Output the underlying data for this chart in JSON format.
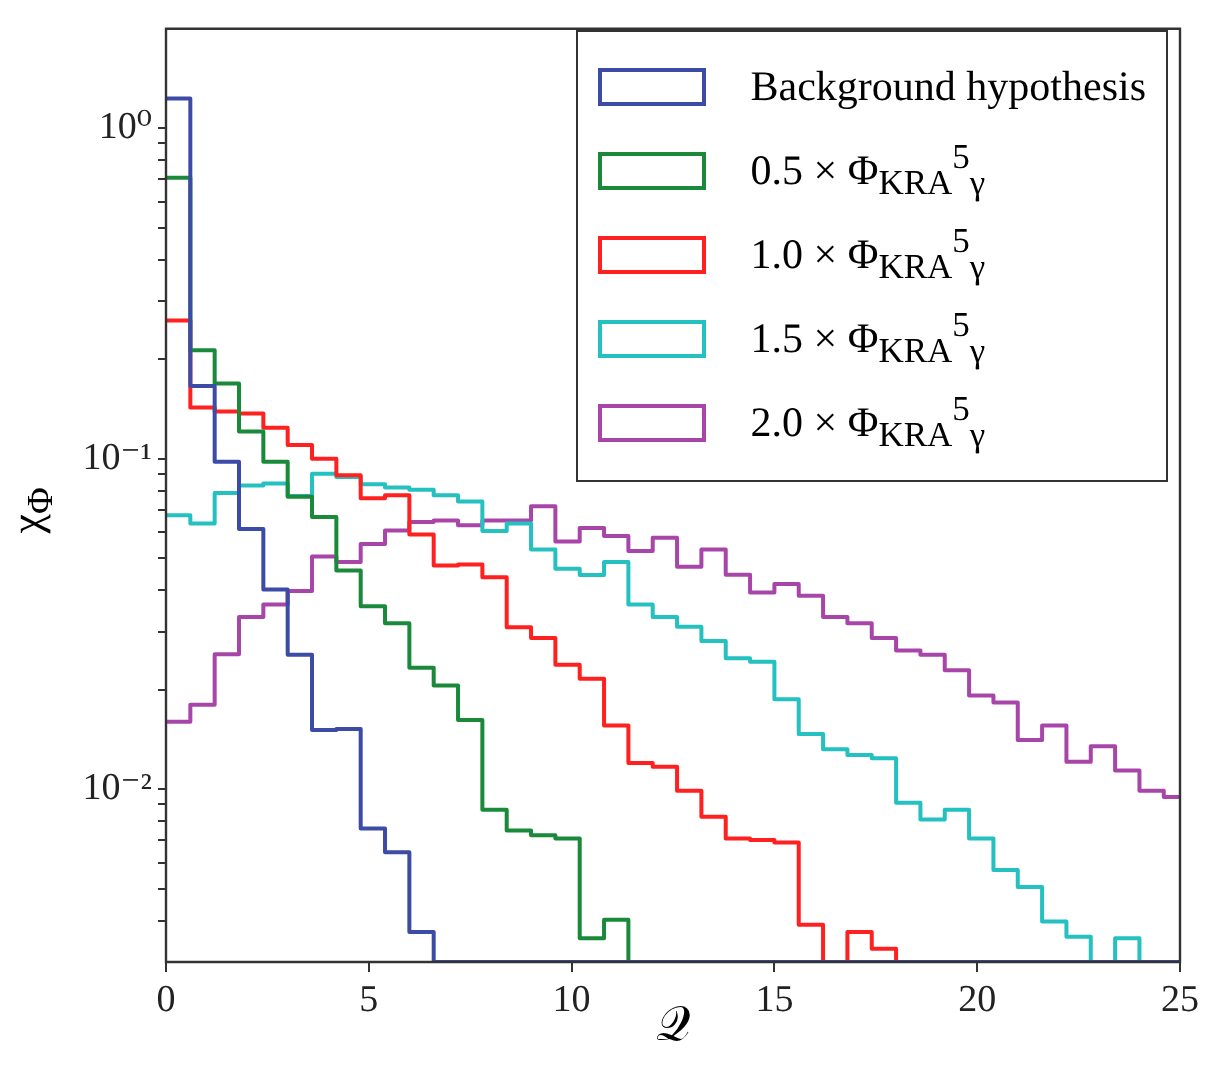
{
  "chart_data": {
    "type": "histogram",
    "xlabel": "𝒬",
    "ylabel": "χ$_{Φ}$",
    "log": true,
    "legend": "top right",
    "grid": false,
    "bins": [
      0,
      0.6,
      1.2,
      1.8,
      2.4,
      3,
      3.6,
      4.2,
      4.8,
      5.4,
      6,
      6.6,
      7.2,
      7.8,
      8.4,
      9,
      9.6,
      10.2,
      10.8,
      11.4,
      12,
      12.6,
      13.2,
      13.8,
      14.4,
      15,
      15.6,
      16.2,
      16.8,
      17.4,
      18,
      18.6,
      19.2,
      19.8,
      20.4,
      21,
      21.6,
      22.2,
      22.8,
      23.4,
      24,
      24.6,
      25.2
    ],
    "xlim": [
      0,
      25
    ],
    "xticks": [
      0,
      5,
      10,
      15,
      20,
      25
    ],
    "ylim": [
      0.003,
      2
    ],
    "yticks": [
      {
        "value": 0.004,
        "label": null
      },
      {
        "value": 0.005,
        "label": null
      },
      {
        "value": 0.006,
        "label": null
      },
      {
        "value": 0.007,
        "label": null
      },
      {
        "value": 0.008,
        "label": null
      },
      {
        "value": 0.009,
        "label": null
      },
      {
        "value": 0.01,
        "label": "10⁻²"
      },
      {
        "value": 0.02,
        "label": null
      },
      {
        "value": 0.03,
        "label": null
      },
      {
        "value": 0.04,
        "label": null
      },
      {
        "value": 0.05,
        "label": null
      },
      {
        "value": 0.06,
        "label": null
      },
      {
        "value": 0.07,
        "label": null
      },
      {
        "value": 0.08,
        "label": null
      },
      {
        "value": 0.09,
        "label": null
      },
      {
        "value": 0.1,
        "label": "10⁻¹"
      },
      {
        "value": 0.2,
        "label": null
      },
      {
        "value": 0.3,
        "label": null
      },
      {
        "value": 0.4,
        "label": null
      },
      {
        "value": 0.5,
        "label": null
      },
      {
        "value": 0.6,
        "label": null
      },
      {
        "value": 0.7,
        "label": null
      },
      {
        "value": 0.8,
        "label": null
      },
      {
        "value": 0.9,
        "label": null
      },
      {
        "value": 1,
        "label": "10⁰"
      }
    ],
    "series": [
      {
        "name": "Background hypothesis",
        "color": "#3b4ba6",
        "values": [
          1.23,
          0.166,
          0.098,
          0.0613,
          0.0402,
          0.0255,
          0.0151,
          0.0152,
          0.0076,
          0.00645,
          0.0037,
          null,
          null,
          null,
          null,
          null,
          null,
          null,
          null,
          null,
          null,
          null,
          null,
          null,
          null,
          null,
          null,
          null,
          null,
          null,
          null,
          null,
          null,
          null,
          null,
          null,
          null,
          null,
          null,
          null,
          null,
          null
        ]
      },
      {
        "name": "0.5 × Φ$_{KRA}$$^{5}$$_{γ}$",
        "color": "#1a8a3a",
        "values": [
          0.708,
          0.213,
          0.169,
          0.121,
          0.098,
          0.0767,
          0.0666,
          0.0459,
          0.0358,
          0.0318,
          0.0233,
          0.0206,
          0.0162,
          0.00866,
          0.0075,
          0.00726,
          0.00709,
          0.00354,
          0.00403,
          null,
          null,
          null,
          null,
          null,
          null,
          null,
          null,
          null,
          null,
          null,
          null,
          null,
          null,
          null,
          null,
          null,
          null,
          null,
          null,
          null,
          null,
          null
        ]
      },
      {
        "name": "1.0 × Φ$_{KRA}$$^{5}$$_{γ}$",
        "color": "#ff2020",
        "values": [
          0.262,
          0.143,
          0.139,
          0.137,
          0.124,
          0.11,
          0.1,
          0.0891,
          0.076,
          0.0776,
          0.059,
          0.0475,
          0.0479,
          0.0438,
          0.0309,
          0.0287,
          0.0238,
          0.0216,
          0.0156,
          0.012,
          0.0117,
          0.0099,
          0.00826,
          0.00709,
          0.00702,
          0.0069,
          0.00389,
          null,
          0.0037,
          0.00329,
          null,
          null,
          null,
          null,
          null,
          null,
          null,
          null,
          null,
          null,
          null,
          null
        ]
      },
      {
        "name": "1.5 × Φ$_{KRA}$$^{5}$$_{γ}$",
        "color": "#25c0c0",
        "values": [
          0.0675,
          0.0637,
          0.0787,
          0.083,
          0.0842,
          0.0772,
          0.09,
          0.088,
          0.0837,
          0.0819,
          0.0806,
          0.0776,
          0.0743,
          0.0604,
          0.0637,
          0.0531,
          0.0465,
          0.0445,
          0.0487,
          0.0362,
          0.0332,
          0.031,
          0.0281,
          0.0249,
          0.0243,
          0.0187,
          0.0147,
          0.0132,
          0.0127,
          0.0124,
          0.0091,
          0.0081,
          0.00866,
          0.00709,
          0.0057,
          0.00506,
          0.00398,
          0.00358,
          null,
          0.00354,
          null,
          null
        ]
      },
      {
        "name": "2.0 × Φ$_{KRA}$$^{5}$$_{γ}$",
        "color": "#a845a8",
        "values": [
          0.016,
          0.018,
          0.0256,
          0.0332,
          0.0362,
          0.0398,
          0.0506,
          0.0487,
          0.0552,
          0.0607,
          0.0643,
          0.065,
          0.0629,
          0.065,
          0.065,
          0.0718,
          0.0562,
          0.0617,
          0.0584,
          0.0526,
          0.0577,
          0.0471,
          0.0531,
          0.0446,
          0.0394,
          0.0418,
          0.0385,
          0.0332,
          0.0318,
          0.0287,
          0.0263,
          0.0255,
          0.0229,
          0.0192,
          0.0183,
          0.0141,
          0.0156,
          0.0121,
          0.0135,
          0.0114,
          0.0099,
          0.00947
        ]
      }
    ]
  }
}
